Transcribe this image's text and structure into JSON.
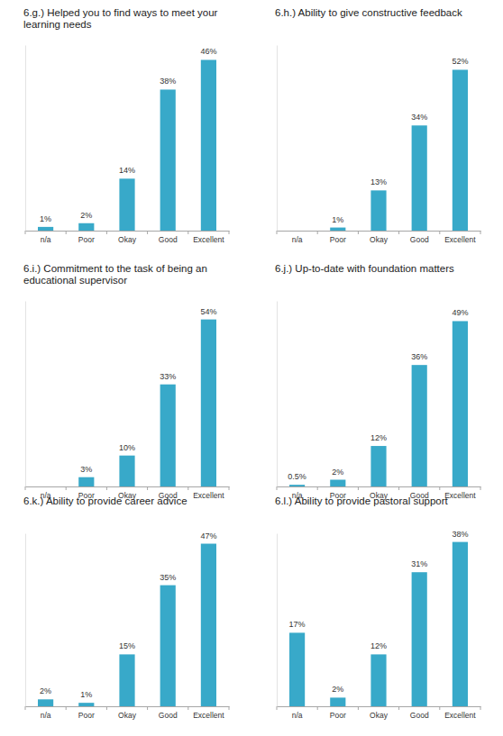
{
  "chart_data": [
    {
      "type": "bar",
      "title": "6.g.) Helped you to find ways to meet your learning needs",
      "categories": [
        "n/a",
        "Poor",
        "Okay",
        "Good",
        "Excellent"
      ],
      "values": [
        1,
        2,
        14,
        38,
        46
      ],
      "value_labels": [
        "1%",
        "2%",
        "14%",
        "38%",
        "46%"
      ],
      "ylim": [
        0,
        50
      ],
      "color": "#38a9c9",
      "data_labels": true,
      "tick_labels": "x"
    },
    {
      "type": "bar",
      "title": "6.h.) Ability to give constructive feedback",
      "categories": [
        "n/a",
        "Poor",
        "Okay",
        "Good",
        "Excellent"
      ],
      "values": [
        null,
        1,
        13,
        34,
        52
      ],
      "value_labels": [
        null,
        "1%",
        "13%",
        "34%",
        "52%"
      ],
      "ylim": [
        0,
        60
      ],
      "color": "#38a9c9",
      "data_labels": true,
      "tick_labels": "x"
    },
    {
      "type": "bar",
      "title": "6.i.) Commitment to the task of being an educational supervisor",
      "categories": [
        "n/a",
        "Poor",
        "Okay",
        "Good",
        "Excellent"
      ],
      "values": [
        null,
        3,
        10,
        33,
        54
      ],
      "value_labels": [
        null,
        "3%",
        "10%",
        "33%",
        "54%"
      ],
      "ylim": [
        0,
        60
      ],
      "color": "#38a9c9",
      "data_labels": true,
      "tick_labels": "x"
    },
    {
      "type": "bar",
      "title": "6.j.) Up-to-date with foundation matters",
      "categories": [
        "n/a",
        "Poor",
        "Okay",
        "Good",
        "Excellent"
      ],
      "values": [
        0.5,
        2,
        12,
        36,
        49
      ],
      "value_labels": [
        "0.5%",
        "2%",
        "12%",
        "36%",
        "49%"
      ],
      "ylim": [
        0,
        55
      ],
      "color": "#38a9c9",
      "data_labels": true,
      "tick_labels": "x"
    },
    {
      "type": "bar",
      "title": "6.k.) Ability to provide career advice",
      "categories": [
        "n/a",
        "Poor",
        "Okay",
        "Good",
        "Excellent"
      ],
      "values": [
        2,
        1,
        15,
        35,
        47
      ],
      "value_labels": [
        "2%",
        "1%",
        "15%",
        "35%",
        "47%"
      ],
      "ylim": [
        0,
        50
      ],
      "color": "#38a9c9",
      "data_labels": true,
      "tick_labels": "x"
    },
    {
      "type": "bar",
      "title": "6.l.) Ability to provide pastoral support",
      "categories": [
        "n/a",
        "Poor",
        "Okay",
        "Good",
        "Excellent"
      ],
      "values": [
        17,
        2,
        12,
        31,
        38
      ],
      "value_labels": [
        "17%",
        "2%",
        "12%",
        "31%",
        "38%"
      ],
      "ylim": [
        0,
        40
      ],
      "color": "#38a9c9",
      "data_labels": true,
      "tick_labels": "x"
    }
  ]
}
